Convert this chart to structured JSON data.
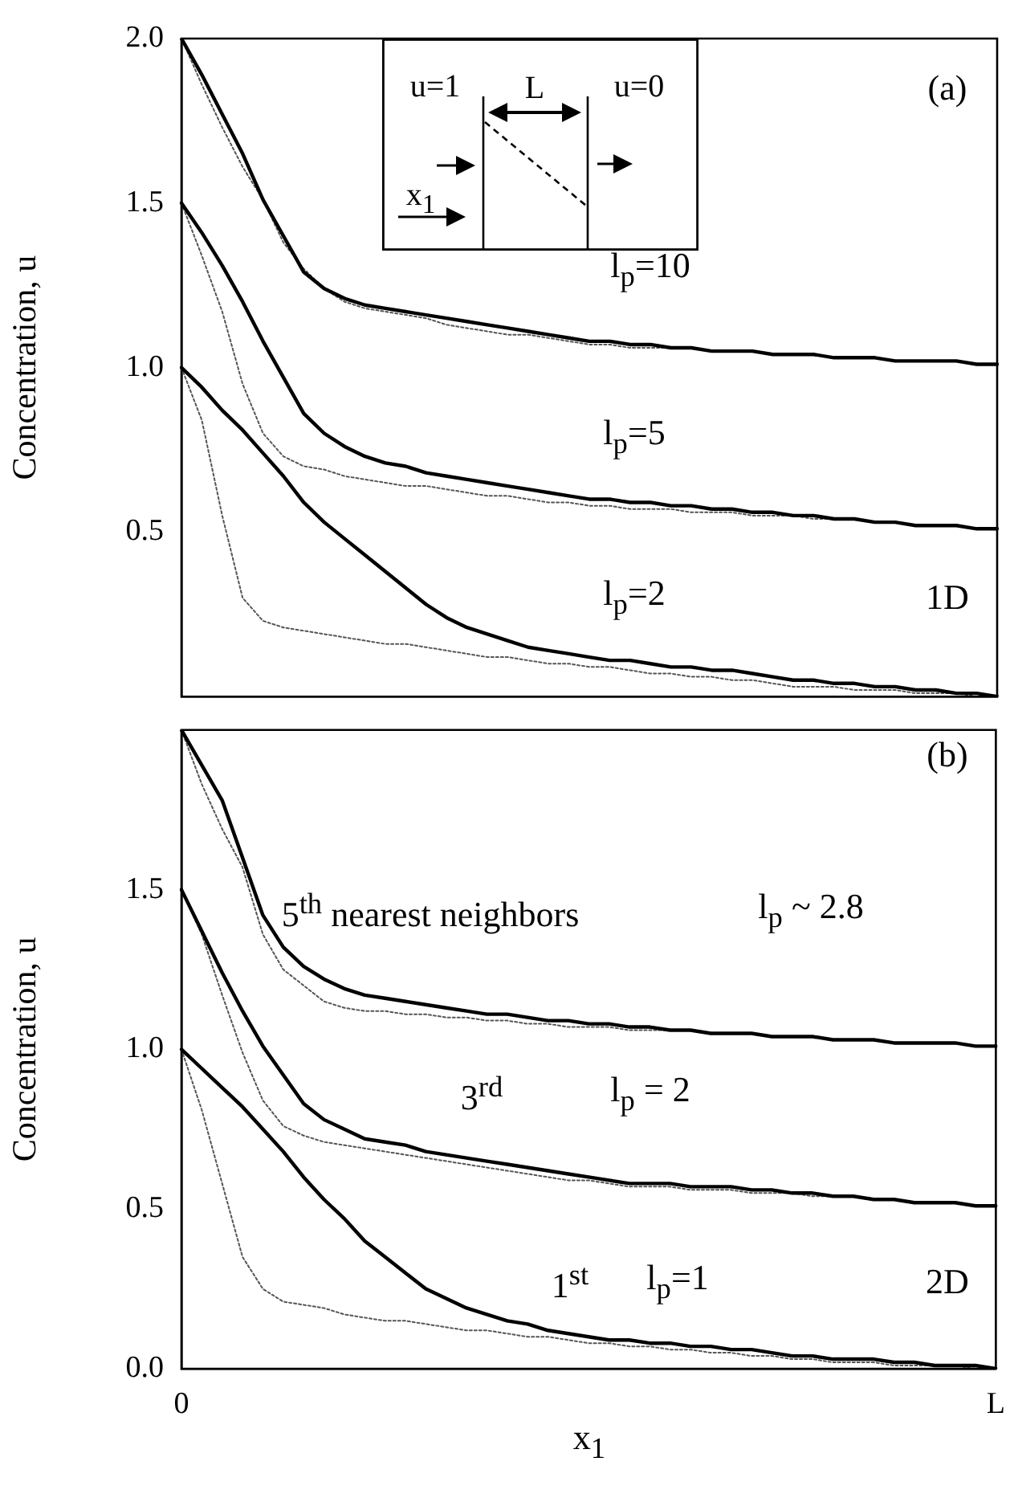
{
  "chart_data": [
    {
      "type": "line",
      "ylabel": "Concentration, u",
      "marker": "none",
      "tick_labels": "y",
      "categories": [
        null,
        null,
        null,
        null,
        null,
        null,
        null,
        null,
        null,
        null,
        null,
        null,
        null,
        null,
        null,
        null,
        null,
        null,
        null,
        null,
        null,
        null,
        null,
        null,
        null,
        null,
        null,
        null,
        null,
        null,
        null,
        null,
        null,
        null,
        null,
        null,
        null,
        null,
        null,
        null,
        null
      ],
      "ylim": [
        0,
        2
      ],
      "yticks": [
        {
          "value": 0.5,
          "label": "0.5"
        },
        {
          "value": 1,
          "label": "1.0"
        },
        {
          "value": 1.5,
          "label": "1.5"
        },
        {
          "value": 2,
          "label": "2.0"
        }
      ],
      "series": [
        {
          "color": "#000000",
          "line_style": "solid",
          "values": [
            2.0,
            1.89,
            1.77,
            1.65,
            1.51,
            1.4,
            1.29,
            1.24,
            1.21,
            1.19,
            1.18,
            1.17,
            1.16,
            1.15,
            1.14,
            1.13,
            1.12,
            1.11,
            1.1,
            1.09,
            1.08,
            1.08,
            1.07,
            1.07,
            1.06,
            1.06,
            1.05,
            1.05,
            1.05,
            1.04,
            1.04,
            1.04,
            1.03,
            1.03,
            1.03,
            1.02,
            1.02,
            1.02,
            1.02,
            1.01,
            1.01
          ]
        },
        {
          "color": "#555555",
          "line_style": "dotted",
          "values": [
            2.0,
            1.86,
            1.73,
            1.61,
            1.51,
            1.38,
            1.3,
            1.24,
            1.2,
            1.18,
            1.17,
            1.16,
            1.15,
            1.13,
            1.12,
            1.11,
            1.1,
            1.1,
            1.09,
            1.08,
            1.07,
            1.07,
            1.06,
            1.06,
            1.06,
            1.06,
            1.05,
            1.05,
            1.05,
            1.04,
            1.04,
            1.04,
            1.03,
            1.03,
            1.03,
            1.02,
            1.02,
            1.02,
            1.02,
            1.01,
            1.01
          ]
        },
        {
          "color": "#000000",
          "line_style": "solid",
          "values": [
            1.5,
            1.41,
            1.31,
            1.2,
            1.08,
            0.97,
            0.86,
            0.8,
            0.76,
            0.73,
            0.71,
            0.7,
            0.68,
            0.67,
            0.66,
            0.65,
            0.64,
            0.63,
            0.62,
            0.61,
            0.6,
            0.6,
            0.59,
            0.59,
            0.58,
            0.58,
            0.57,
            0.57,
            0.56,
            0.56,
            0.55,
            0.55,
            0.54,
            0.54,
            0.53,
            0.53,
            0.52,
            0.52,
            0.52,
            0.51,
            0.51
          ]
        },
        {
          "color": "#555555",
          "line_style": "dotted",
          "values": [
            1.5,
            1.34,
            1.17,
            0.95,
            0.8,
            0.73,
            0.7,
            0.69,
            0.67,
            0.66,
            0.65,
            0.64,
            0.64,
            0.63,
            0.62,
            0.61,
            0.61,
            0.6,
            0.59,
            0.59,
            0.58,
            0.58,
            0.57,
            0.57,
            0.57,
            0.56,
            0.56,
            0.56,
            0.55,
            0.55,
            0.55,
            0.54,
            0.54,
            0.54,
            0.53,
            0.53,
            0.52,
            0.52,
            0.52,
            0.51,
            0.51
          ]
        },
        {
          "color": "#000000",
          "line_style": "solid",
          "values": [
            1.0,
            0.94,
            0.87,
            0.81,
            0.74,
            0.67,
            0.59,
            0.53,
            0.48,
            0.43,
            0.38,
            0.33,
            0.28,
            0.24,
            0.21,
            0.19,
            0.17,
            0.15,
            0.14,
            0.13,
            0.12,
            0.11,
            0.11,
            0.1,
            0.09,
            0.09,
            0.08,
            0.08,
            0.07,
            0.06,
            0.05,
            0.05,
            0.04,
            0.04,
            0.03,
            0.03,
            0.02,
            0.02,
            0.01,
            0.01,
            0.0
          ]
        },
        {
          "color": "#555555",
          "line_style": "dotted",
          "values": [
            1.0,
            0.84,
            0.55,
            0.3,
            0.23,
            0.21,
            0.2,
            0.19,
            0.18,
            0.17,
            0.16,
            0.16,
            0.15,
            0.14,
            0.13,
            0.12,
            0.12,
            0.11,
            0.1,
            0.1,
            0.09,
            0.09,
            0.08,
            0.07,
            0.07,
            0.06,
            0.06,
            0.05,
            0.05,
            0.04,
            0.03,
            0.03,
            0.03,
            0.02,
            0.02,
            0.02,
            0.01,
            0.01,
            0.01,
            0.0,
            0.0
          ]
        }
      ],
      "annotations": [
        "u=1",
        "L",
        "u=0",
        "x$_{1}$",
        "(a)",
        "l$_{p}$=10",
        "l$_{p}$=5",
        "l$_{p}$=2",
        "1D"
      ]
    },
    {
      "type": "line",
      "ylabel": "Concentration, u",
      "xlabel": "x$_{1}$",
      "marker": "none",
      "categories": [
        "0",
        null,
        null,
        null,
        null,
        null,
        null,
        null,
        null,
        null,
        null,
        null,
        null,
        null,
        null,
        null,
        null,
        null,
        null,
        null,
        null,
        null,
        null,
        null,
        null,
        null,
        null,
        null,
        null,
        null,
        null,
        null,
        null,
        null,
        null,
        null,
        null,
        null,
        null,
        null,
        "L"
      ],
      "ylim": [
        0,
        2
      ],
      "yticks": [
        {
          "value": 0,
          "label": "0.0"
        },
        {
          "value": 0.5,
          "label": "0.5"
        },
        {
          "value": 1,
          "label": "1.0"
        },
        {
          "value": 1.5,
          "label": "1.5"
        }
      ],
      "series": [
        {
          "color": "#000000",
          "line_style": "solid",
          "values": [
            2.0,
            1.89,
            1.78,
            1.6,
            1.42,
            1.32,
            1.26,
            1.22,
            1.19,
            1.17,
            1.16,
            1.15,
            1.14,
            1.13,
            1.12,
            1.11,
            1.11,
            1.1,
            1.09,
            1.09,
            1.08,
            1.08,
            1.07,
            1.07,
            1.06,
            1.06,
            1.05,
            1.05,
            1.05,
            1.04,
            1.04,
            1.04,
            1.03,
            1.03,
            1.03,
            1.02,
            1.02,
            1.02,
            1.02,
            1.01,
            1.01
          ]
        },
        {
          "color": "#555555",
          "line_style": "dotted",
          "values": [
            2.0,
            1.83,
            1.69,
            1.57,
            1.36,
            1.25,
            1.2,
            1.15,
            1.13,
            1.12,
            1.12,
            1.11,
            1.11,
            1.1,
            1.1,
            1.09,
            1.09,
            1.08,
            1.08,
            1.07,
            1.07,
            1.07,
            1.06,
            1.06,
            1.06,
            1.06,
            1.05,
            1.05,
            1.05,
            1.04,
            1.04,
            1.04,
            1.03,
            1.03,
            1.03,
            1.02,
            1.02,
            1.02,
            1.02,
            1.01,
            1.01
          ]
        },
        {
          "color": "#000000",
          "line_style": "solid",
          "values": [
            1.5,
            1.37,
            1.24,
            1.12,
            1.01,
            0.92,
            0.83,
            0.78,
            0.75,
            0.72,
            0.71,
            0.7,
            0.68,
            0.67,
            0.66,
            0.65,
            0.64,
            0.63,
            0.62,
            0.61,
            0.6,
            0.59,
            0.58,
            0.58,
            0.58,
            0.57,
            0.57,
            0.57,
            0.56,
            0.56,
            0.55,
            0.55,
            0.54,
            0.54,
            0.53,
            0.53,
            0.52,
            0.52,
            0.52,
            0.51,
            0.51
          ]
        },
        {
          "color": "#555555",
          "line_style": "dotted",
          "values": [
            1.5,
            1.36,
            1.17,
            0.99,
            0.84,
            0.76,
            0.73,
            0.71,
            0.7,
            0.69,
            0.68,
            0.67,
            0.66,
            0.65,
            0.64,
            0.63,
            0.62,
            0.61,
            0.6,
            0.59,
            0.59,
            0.58,
            0.57,
            0.57,
            0.57,
            0.56,
            0.56,
            0.56,
            0.55,
            0.55,
            0.55,
            0.54,
            0.54,
            0.54,
            0.53,
            0.53,
            0.52,
            0.52,
            0.52,
            0.51,
            0.51
          ]
        },
        {
          "color": "#000000",
          "line_style": "solid",
          "values": [
            1.0,
            0.94,
            0.88,
            0.82,
            0.75,
            0.68,
            0.6,
            0.53,
            0.47,
            0.4,
            0.35,
            0.3,
            0.25,
            0.22,
            0.19,
            0.17,
            0.15,
            0.14,
            0.12,
            0.11,
            0.1,
            0.09,
            0.09,
            0.08,
            0.08,
            0.07,
            0.07,
            0.06,
            0.06,
            0.05,
            0.04,
            0.04,
            0.03,
            0.03,
            0.03,
            0.02,
            0.02,
            0.01,
            0.01,
            0.01,
            0.0
          ]
        },
        {
          "color": "#555555",
          "line_style": "dotted",
          "values": [
            1.0,
            0.81,
            0.58,
            0.35,
            0.25,
            0.21,
            0.2,
            0.19,
            0.17,
            0.16,
            0.15,
            0.15,
            0.14,
            0.13,
            0.12,
            0.12,
            0.11,
            0.1,
            0.1,
            0.09,
            0.08,
            0.08,
            0.07,
            0.07,
            0.06,
            0.06,
            0.05,
            0.05,
            0.04,
            0.04,
            0.03,
            0.03,
            0.02,
            0.02,
            0.02,
            0.01,
            0.01,
            0.01,
            0.01,
            0.0,
            0.0
          ]
        }
      ],
      "annotations": [
        "(b)",
        "5$^{th}$ nearest neighbors",
        "l$_{p}$ ~ 2.8",
        "3$^{rd}$",
        "l$_{p}$ = 2",
        "1$^{st}$",
        "l$_{p}$=1",
        "2D"
      ]
    }
  ]
}
